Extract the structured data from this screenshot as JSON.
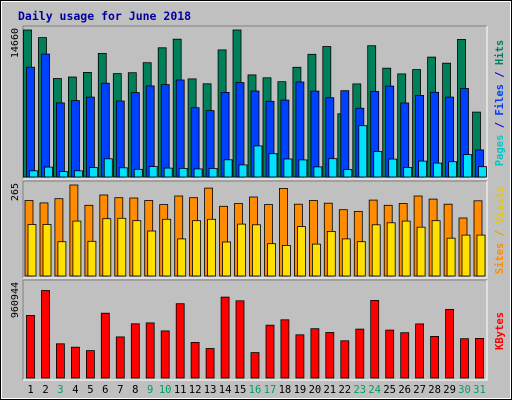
{
  "chart_data": {
    "type": "bar",
    "title": "Daily usage for June 2018",
    "categories": [
      "1",
      "2",
      "3",
      "4",
      "5",
      "6",
      "7",
      "8",
      "9",
      "10",
      "11",
      "12",
      "13",
      "14",
      "15",
      "16",
      "17",
      "18",
      "19",
      "20",
      "21",
      "22",
      "23",
      "24",
      "25",
      "26",
      "27",
      "28",
      "29",
      "30",
      "31"
    ],
    "weekend_days": [
      "3",
      "9",
      "10",
      "16",
      "17",
      "23",
      "24",
      "30",
      "31"
    ],
    "legend_right": {
      "top": [
        {
          "text": "Pages",
          "color": "#00c8c8"
        },
        {
          "text": " / ",
          "color": "#0000d0"
        },
        {
          "text": "Files",
          "color": "#0040ff"
        },
        {
          "text": " / ",
          "color": "#0000d0"
        },
        {
          "text": "Hits",
          "color": "#008060"
        }
      ],
      "middle": [
        {
          "text": "Sites",
          "color": "#ff8c00"
        },
        {
          "text": " / ",
          "color": "#e0a000"
        },
        {
          "text": "Visits",
          "color": "#e8c800"
        }
      ],
      "bottom": [
        {
          "text": "KBytes",
          "color": "#ff0000"
        }
      ]
    },
    "panels": [
      {
        "name": "top",
        "ymax_label": "14660",
        "ylim": [
          0,
          14660
        ],
        "series": [
          {
            "name": "Hits",
            "color": "#00805a",
            "values": [
              14660,
              13900,
              9820,
              9970,
              10430,
              12330,
              10310,
              10400,
              11400,
              12880,
              13740,
              9780,
              9290,
              12680,
              14660,
              10180,
              9890,
              9500,
              10940,
              12240,
              13010,
              6300,
              9280,
              13090,
              10850,
              10280,
              10710,
              11960,
              11350,
              13720,
              6470
            ]
          },
          {
            "name": "Files",
            "color": "#0040ff",
            "values": [
              10950,
              12260,
              7390,
              7620,
              7970,
              9350,
              7580,
              8420,
              9090,
              9210,
              9670,
              6910,
              6620,
              8440,
              9410,
              8580,
              7550,
              7670,
              9470,
              8570,
              7910,
              8610,
              6860,
              8530,
              9070,
              7380,
              8140,
              8450,
              7970,
              8830,
              2700
            ]
          },
          {
            "name": "Pages",
            "color": "#00e0ff",
            "values": [
              620,
              990,
              540,
              620,
              940,
              1820,
              920,
              770,
              1040,
              890,
              860,
              810,
              850,
              1720,
              1210,
              3100,
              2320,
              1800,
              1710,
              1010,
              1830,
              750,
              5120,
              2540,
              1790,
              960,
              1590,
              1390,
              1530,
              2230,
              1030
            ]
          }
        ]
      },
      {
        "name": "middle",
        "ymax_label": "265",
        "ylim": [
          0,
          265
        ],
        "series": [
          {
            "name": "Sites",
            "color": "#ff8c00",
            "values": [
              220,
              213,
              225,
              265,
              206,
              236,
              228,
              227,
              220,
              208,
              233,
              228,
              256,
              203,
              211,
              230,
              208,
              255,
              209,
              220,
              212,
              193,
              188,
              221,
              206,
              211,
              233,
              224,
              209,
              169,
              219
            ]
          },
          {
            "name": "Visits",
            "color": "#ffe000",
            "values": [
              150,
              150,
              100,
              160,
              101,
              167,
              168,
              161,
              131,
              165,
              108,
              161,
              165,
              99,
              151,
              149,
              94,
              89,
              144,
              93,
              130,
              108,
              100,
              149,
              155,
              160,
              142,
              161,
              110,
              119,
              119
            ]
          }
        ]
      },
      {
        "name": "bottom",
        "ymax_label": "960944",
        "ylim": [
          0,
          960944
        ],
        "series": [
          {
            "name": "KBytes",
            "color": "#ff0000",
            "values": [
              640000,
              895000,
              350000,
              315000,
              280000,
              662000,
              420000,
              554000,
              563000,
              481000,
              760000,
              364000,
              302000,
              827000,
              789000,
              260000,
              540000,
              595000,
              442000,
              504000,
              465000,
              380000,
              500000,
              793000,
              490000,
              463000,
              553000,
              425000,
              701000,
              402000,
              405000
            ]
          }
        ]
      }
    ]
  }
}
